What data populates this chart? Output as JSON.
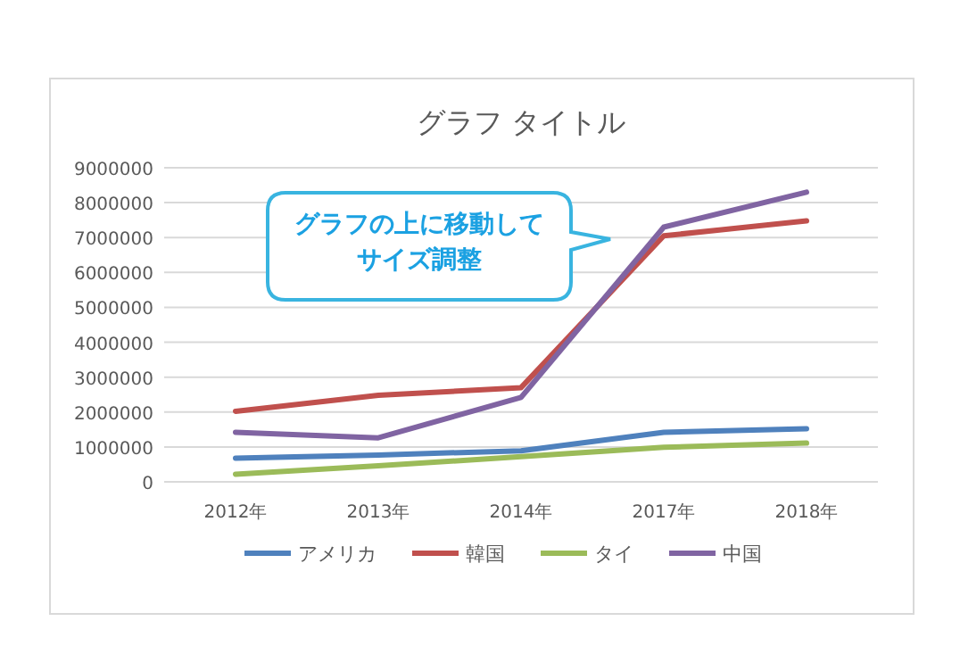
{
  "chart_data": {
    "type": "line",
    "title": "グラフ タイトル",
    "categories": [
      "2012年",
      "2013年",
      "2014年",
      "2017年",
      "2018年"
    ],
    "series": [
      {
        "name": "アメリカ",
        "color": "#4f81bd",
        "values": [
          680000,
          770000,
          890000,
          1420000,
          1520000
        ]
      },
      {
        "name": "韓国",
        "color": "#c0504d",
        "values": [
          2020000,
          2480000,
          2700000,
          7050000,
          7480000
        ]
      },
      {
        "name": "タイ",
        "color": "#9bbb59",
        "values": [
          220000,
          460000,
          720000,
          990000,
          1110000
        ]
      },
      {
        "name": "中国",
        "color": "#8064a2",
        "values": [
          1420000,
          1260000,
          2420000,
          7300000,
          8300000
        ]
      }
    ],
    "ylim": [
      0,
      9000000
    ],
    "yticks": [
      0,
      1000000,
      2000000,
      3000000,
      4000000,
      5000000,
      6000000,
      7000000,
      8000000,
      9000000
    ],
    "grid": "y",
    "legend": "bottom",
    "annotations": [
      "グラフの上に移動してサイズ調整"
    ]
  }
}
